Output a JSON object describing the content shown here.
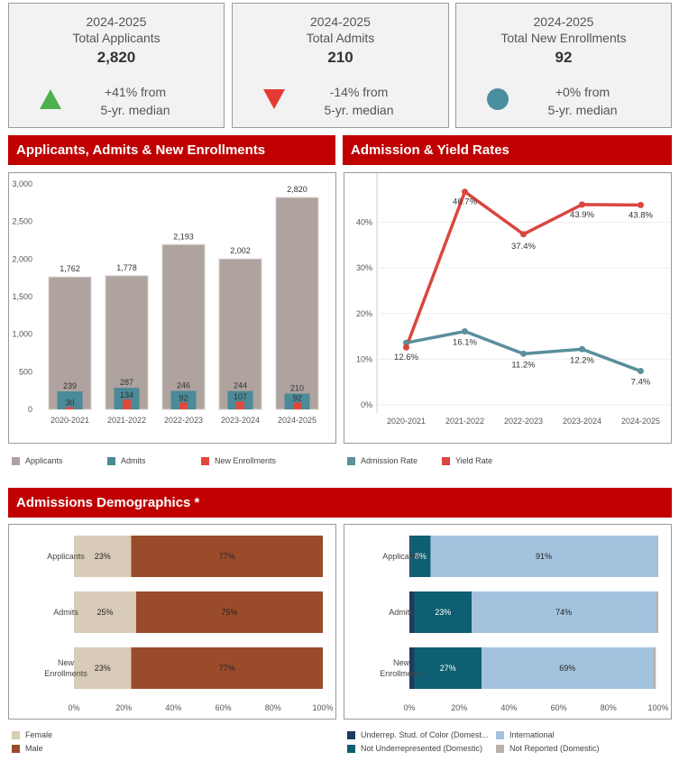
{
  "kpis": [
    {
      "year": "2024-2025",
      "label": "Total Applicants",
      "value": "2,820",
      "change": "+41% from",
      "basis": "5-yr. median",
      "indicator": "up-triangle",
      "color": "#4caf50"
    },
    {
      "year": "2024-2025",
      "label": "Total Admits",
      "value": "210",
      "change": "-14% from",
      "basis": "5-yr. median",
      "indicator": "down-triangle",
      "color": "#e53935"
    },
    {
      "year": "2024-2025",
      "label": "Total New Enrollments",
      "value": "92",
      "change": "+0% from",
      "basis": "5-yr. median",
      "indicator": "circle",
      "color": "#4a8fa0"
    }
  ],
  "headers": {
    "apps": "Applicants, Admits & New Enrollments",
    "rates": "Admission & Yield Rates",
    "demo": "Admissions Demographics *"
  },
  "colors": {
    "applicants": "#aea39f",
    "admits": "#4a8a99",
    "enrollments": "#e0483c",
    "admission_rate": "#5a8f9c",
    "yield_rate": "#d9473e",
    "female": "#d8cbb8",
    "male": "#9a4b2a",
    "urm": "#1f3a60",
    "not_urm": "#0f5f73",
    "international": "#a3c2de",
    "not_reported": "#b8b0ab"
  },
  "chart_data": [
    {
      "type": "bar",
      "title": "Applicants, Admits & New Enrollments",
      "categories": [
        "2020-2021",
        "2021-2022",
        "2022-2023",
        "2023-2024",
        "2024-2025"
      ],
      "series": [
        {
          "name": "Applicants",
          "values": [
            1762,
            1778,
            2193,
            2002,
            2820
          ],
          "labels": [
            "1,762",
            "1,778",
            "2,193",
            "2,002",
            "2,820"
          ]
        },
        {
          "name": "Admits",
          "values": [
            239,
            287,
            246,
            244,
            210
          ]
        },
        {
          "name": "New Enrollments",
          "values": [
            30,
            134,
            92,
            107,
            92
          ]
        }
      ],
      "yticks": [
        0,
        500,
        1000,
        1500,
        2000,
        2500,
        3000
      ],
      "ylim": [
        0,
        3000
      ]
    },
    {
      "type": "line",
      "title": "Admission & Yield Rates",
      "categories": [
        "2020-2021",
        "2021-2022",
        "2022-2023",
        "2023-2024",
        "2024-2025"
      ],
      "series": [
        {
          "name": "Admission Rate",
          "values": [
            13.6,
            16.1,
            11.2,
            12.2,
            7.4
          ],
          "labels": [
            "",
            "16.1%",
            "11.2%",
            "12.2%",
            "7.4%"
          ]
        },
        {
          "name": "Yield Rate",
          "values": [
            12.6,
            46.7,
            37.4,
            43.9,
            43.8
          ],
          "labels": [
            "12.6%",
            "46.7%",
            "37.4%",
            "43.9%",
            "43.8%"
          ]
        }
      ],
      "yticks": [
        "0%",
        "10%",
        "20%",
        "30%",
        "40%"
      ],
      "ylim": [
        0,
        50
      ]
    },
    {
      "type": "bar",
      "orientation": "horizontal-stacked",
      "categories": [
        "Applicants",
        "Admits",
        "New Enrollments"
      ],
      "series": [
        {
          "name": "Female",
          "values": [
            23,
            25,
            23
          ]
        },
        {
          "name": "Male",
          "values": [
            77,
            75,
            77
          ]
        }
      ],
      "xticks": [
        "0%",
        "20%",
        "40%",
        "60%",
        "80%",
        "100%"
      ],
      "xlim": [
        0,
        100
      ]
    },
    {
      "type": "bar",
      "orientation": "horizontal-stacked",
      "categories": [
        "Applicants",
        "Admits",
        "New Enrollments"
      ],
      "series": [
        {
          "name": "Underrep. Stud. of Color (Domestic)",
          "values": [
            0.5,
            2,
            2
          ]
        },
        {
          "name": "Not Underrepresented (Domestic)",
          "values": [
            8,
            23,
            27
          ],
          "labels": [
            "8%",
            "23%",
            "27%"
          ]
        },
        {
          "name": "International",
          "values": [
            91,
            74,
            69
          ],
          "labels": [
            "91%",
            "74%",
            "69%"
          ]
        },
        {
          "name": "Not Reported (Domestic)",
          "values": [
            0.5,
            1,
            1
          ]
        }
      ],
      "xticks": [
        "0%",
        "20%",
        "40%",
        "60%",
        "80%",
        "100%"
      ],
      "xlim": [
        0,
        100
      ]
    }
  ],
  "legends": {
    "apps": [
      "Applicants",
      "Admits",
      "New Enrollments"
    ],
    "rates": [
      "Admission Rate",
      "Yield Rate"
    ],
    "gender": [
      "Female",
      "Male"
    ],
    "ethnicity": [
      "Underrep. Stud. of Color (Domest...",
      "International",
      "Not Underrepresented (Domestic)",
      "Not Reported (Domestic)"
    ]
  },
  "demo_row_labels": [
    [
      "Applicants"
    ],
    [
      "Admits"
    ],
    [
      "New",
      "Enrollments"
    ]
  ]
}
